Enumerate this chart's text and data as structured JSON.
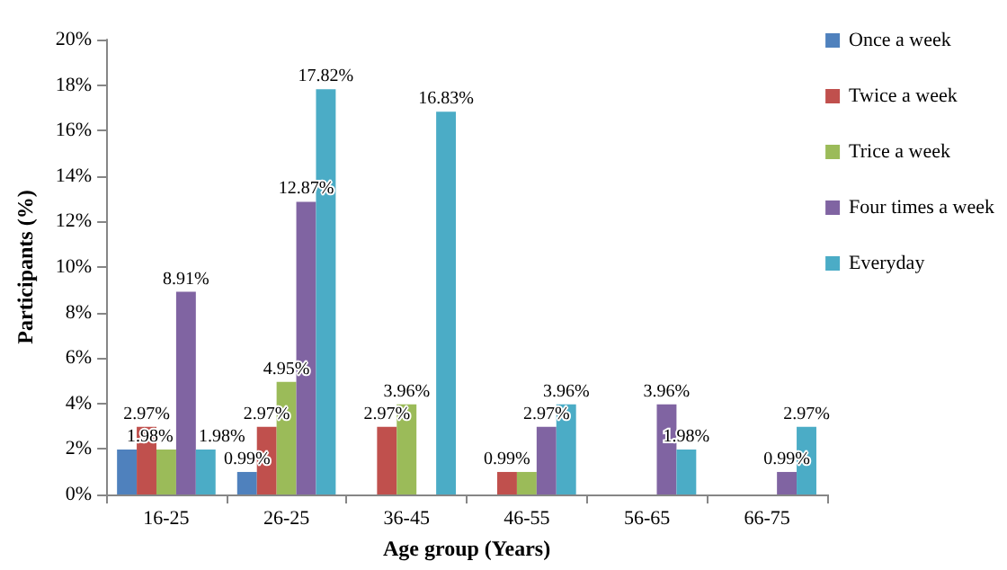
{
  "chart_data": {
    "type": "bar",
    "xlabel": "Age group (Years)",
    "ylabel": "Participants (%)",
    "categories": [
      "16-25",
      "26-25",
      "36-45",
      "46-55",
      "56-65",
      "66-75"
    ],
    "series": [
      {
        "name": "Once a week",
        "color": "#4f81bd",
        "values": [
          1.98,
          0.99,
          null,
          null,
          null,
          null
        ],
        "value_labels": [
          null,
          "0.99%",
          null,
          null,
          null,
          null
        ]
      },
      {
        "name": "Twice a week",
        "color": "#c0504d",
        "values": [
          2.97,
          2.97,
          2.97,
          0.99,
          null,
          null
        ],
        "value_labels": [
          "2.97%",
          "2.97%",
          "2.97%",
          "0.99%",
          null,
          null
        ]
      },
      {
        "name": "Trice a week",
        "color": "#9bbb59",
        "values": [
          1.98,
          4.95,
          3.96,
          0.99,
          null,
          null
        ],
        "value_labels": [
          "1.98%",
          "4.95%",
          "3.96%",
          null,
          null,
          null
        ]
      },
      {
        "name": "Four times a week",
        "color": "#8064a2",
        "values": [
          8.91,
          12.87,
          null,
          2.97,
          3.96,
          0.99
        ],
        "value_labels": [
          "8.91%",
          "12.87%",
          null,
          "2.97%",
          "3.96%",
          "0.99%"
        ]
      },
      {
        "name": "Everyday",
        "color": "#4bacc6",
        "values": [
          1.98,
          17.82,
          16.83,
          3.96,
          1.98,
          2.97
        ],
        "value_labels": [
          "1.98%",
          "17.82%",
          "16.83%",
          "3.96%",
          "1.98%",
          "2.97%"
        ]
      }
    ],
    "ylim": [
      0,
      20
    ],
    "yticks": [
      {
        "value": 0,
        "label": "0%"
      },
      {
        "value": 2,
        "label": "2%"
      },
      {
        "value": 4,
        "label": "4%"
      },
      {
        "value": 6,
        "label": "6%"
      },
      {
        "value": 8,
        "label": "8%"
      },
      {
        "value": 10,
        "label": "10%"
      },
      {
        "value": 12,
        "label": "12%"
      },
      {
        "value": 14,
        "label": "14%"
      },
      {
        "value": 16,
        "label": "16%"
      },
      {
        "value": 18,
        "label": "18%"
      },
      {
        "value": 20,
        "label": "20%"
      }
    ],
    "grid": false,
    "legend": "right"
  }
}
